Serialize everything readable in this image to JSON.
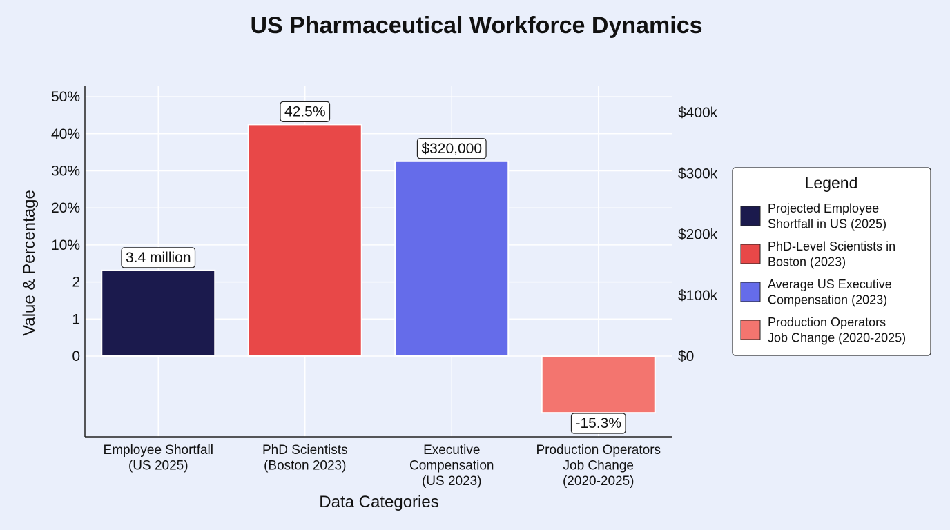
{
  "chart_data": {
    "type": "bar",
    "title": "US Pharmaceutical Workforce Dynamics",
    "xlabel": "Data Categories",
    "ylabel": "Value & Percentage",
    "y_tick_labels": [
      "0",
      "1",
      "2",
      "10%",
      "20%",
      "30%",
      "40%",
      "50%"
    ],
    "y2_tick_labels": [
      "$0",
      "$100k",
      "$200k",
      "$300k",
      "$400k"
    ],
    "y2lim": [
      0,
      400000
    ],
    "grid": true,
    "legend_title": "Legend",
    "legend_position": "right",
    "categories": [
      [
        "Employee Shortfall",
        "(US 2025)"
      ],
      [
        "PhD Scientists",
        "(Boston 2023)"
      ],
      [
        "Executive",
        "Compensation",
        "(US 2023)"
      ],
      [
        "Production Operators",
        "Job Change",
        "(2020-2025)"
      ]
    ],
    "bars": [
      {
        "category": "Employee Shortfall (US 2025)",
        "value_text": "3.4 million",
        "value": 3.4,
        "unit": "million",
        "axis_level": 4.5,
        "color": "#1b1a4d",
        "legend": [
          "Projected Employee",
          "Shortfall in US (2025)"
        ]
      },
      {
        "category": "PhD Scientists (Boston 2023)",
        "value_text": "42.5%",
        "value": 42.5,
        "unit": "%",
        "axis_level": 42.5,
        "color": "#e84848",
        "legend": [
          "PhD-Level Scientists in",
          "Boston (2023)"
        ]
      },
      {
        "category": "Executive Compensation (US 2023)",
        "value_text": "$320,000",
        "value": 320000,
        "unit": "USD",
        "axis_level": 320000,
        "color": "#656cea",
        "legend": [
          "Average US Executive",
          "Compensation (2023)"
        ]
      },
      {
        "category": "Production Operators Job Change (2020-2025)",
        "value_text": "-15.3%",
        "value": -15.3,
        "unit": "%",
        "axis_level": -15.3,
        "color": "#f3756f",
        "legend": [
          "Production Operators",
          "Job Change (2020-2025)"
        ]
      }
    ]
  }
}
